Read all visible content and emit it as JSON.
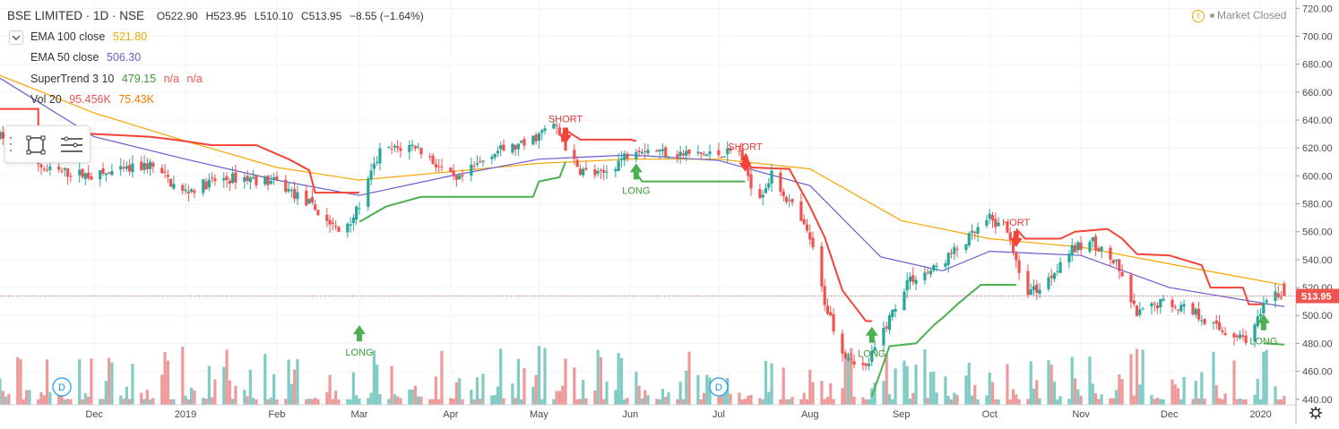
{
  "header": {
    "symbol": "BSE LIMITED · 1D · NSE",
    "open": "O522.90",
    "high": "H523.95",
    "low": "L510.10",
    "close": "C513.95",
    "change": "−8.55 (−1.64%)"
  },
  "legend": [
    {
      "name": "EMA 100 close",
      "values": [
        "521.80"
      ],
      "color": "#f7a600"
    },
    {
      "name": "EMA 50 close",
      "values": [
        "506.30"
      ],
      "color": "#6d5bd0"
    },
    {
      "name": "SuperTrend 3 10",
      "values": [
        "479.15",
        "n/a",
        "n/a"
      ],
      "color": "#3d9b3a"
    },
    {
      "name": "Vol 20",
      "values": [
        "95.456K",
        "75.43K"
      ],
      "color": "#ef5350"
    }
  ],
  "market_status": "Market Closed",
  "last_price_label": "513.95",
  "colors": {
    "up": "#26a69a",
    "down": "#ef5350",
    "ema100": "#f7a600",
    "ema50": "#6d5bd0",
    "st_up": "#4caf50",
    "st_down": "#f44336",
    "vol_up": "#80cbc4",
    "vol_down": "#ef9a9a"
  },
  "annotations": [
    {
      "text": "LONG",
      "type": "long",
      "date": "2019-03-01",
      "price": 484
    },
    {
      "text": "SHORT",
      "type": "short",
      "date": "2019-05-10",
      "price": 632
    },
    {
      "text": "LONG",
      "type": "long",
      "date": "2019-06-03",
      "price": 600
    },
    {
      "text": "SHORT",
      "type": "short",
      "date": "2019-07-10",
      "price": 612
    },
    {
      "text": "LONG",
      "type": "long",
      "date": "2019-08-22",
      "price": 483
    },
    {
      "text": "HORT",
      "type": "short",
      "date": "2019-10-10",
      "price": 558
    },
    {
      "text": "LONG",
      "type": "long",
      "date": "2020-01-02",
      "price": 492
    }
  ],
  "event_markers": [
    {
      "label": "D",
      "date": "2018-11-20"
    },
    {
      "label": "D",
      "date": "2019-07-01"
    }
  ],
  "chart_data": {
    "type": "candlestick",
    "title": "BSE LIMITED · 1D · NSE",
    "x_ticks": [
      {
        "label": "Dec",
        "date": "2018-12-01"
      },
      {
        "label": "2019",
        "date": "2019-01-01"
      },
      {
        "label": "Feb",
        "date": "2019-02-01"
      },
      {
        "label": "Mar",
        "date": "2019-03-01"
      },
      {
        "label": "Apr",
        "date": "2019-04-01"
      },
      {
        "label": "May",
        "date": "2019-05-01"
      },
      {
        "label": "Jun",
        "date": "2019-06-01"
      },
      {
        "label": "Jul",
        "date": "2019-07-01"
      },
      {
        "label": "Aug",
        "date": "2019-08-01"
      },
      {
        "label": "Sep",
        "date": "2019-09-01"
      },
      {
        "label": "Oct",
        "date": "2019-10-01"
      },
      {
        "label": "Nov",
        "date": "2019-11-01"
      },
      {
        "label": "Dec",
        "date": "2019-12-01"
      },
      {
        "label": "2020",
        "date": "2020-01-01"
      }
    ],
    "y_ticks": [
      720,
      700,
      680,
      660,
      640,
      620,
      600,
      580,
      560,
      540,
      520,
      500,
      480,
      460,
      440
    ],
    "ylim": [
      436,
      726
    ],
    "xlim": [
      "2018-10-30",
      "2020-01-13"
    ],
    "grid": true,
    "last_close": 513.95,
    "price_keypoints": [
      [
        "2018-11-01",
        628
      ],
      [
        "2018-11-15",
        604
      ],
      [
        "2018-12-01",
        600
      ],
      [
        "2018-12-10",
        603
      ],
      [
        "2018-12-20",
        608
      ],
      [
        "2018-12-31",
        588
      ],
      [
        "2019-01-10",
        596
      ],
      [
        "2019-01-20",
        599
      ],
      [
        "2019-02-01",
        595
      ],
      [
        "2019-02-12",
        580
      ],
      [
        "2019-02-22",
        560
      ],
      [
        "2019-02-28",
        574
      ],
      [
        "2019-03-08",
        617
      ],
      [
        "2019-03-20",
        622
      ],
      [
        "2019-04-03",
        595
      ],
      [
        "2019-04-15",
        617
      ],
      [
        "2019-04-26",
        622
      ],
      [
        "2019-05-06",
        637
      ],
      [
        "2019-05-14",
        605
      ],
      [
        "2019-05-22",
        600
      ],
      [
        "2019-06-03",
        621
      ],
      [
        "2019-06-15",
        616
      ],
      [
        "2019-06-28",
        615
      ],
      [
        "2019-07-08",
        618
      ],
      [
        "2019-07-14",
        583
      ],
      [
        "2019-07-19",
        600
      ],
      [
        "2019-07-26",
        578
      ],
      [
        "2019-08-01",
        555
      ],
      [
        "2019-08-06",
        510
      ],
      [
        "2019-08-12",
        475
      ],
      [
        "2019-08-20",
        462
      ],
      [
        "2019-08-25",
        485
      ],
      [
        "2019-09-03",
        525
      ],
      [
        "2019-09-12",
        533
      ],
      [
        "2019-09-24",
        555
      ],
      [
        "2019-10-01",
        569
      ],
      [
        "2019-10-08",
        557
      ],
      [
        "2019-10-12",
        517
      ],
      [
        "2019-10-19",
        520
      ],
      [
        "2019-10-27",
        545
      ],
      [
        "2019-11-05",
        553
      ],
      [
        "2019-11-13",
        536
      ],
      [
        "2019-11-20",
        500
      ],
      [
        "2019-11-28",
        510
      ],
      [
        "2019-12-08",
        505
      ],
      [
        "2019-12-18",
        490
      ],
      [
        "2019-12-28",
        483
      ],
      [
        "2020-01-02",
        505
      ],
      [
        "2020-01-06",
        516
      ],
      [
        "2020-01-09",
        514
      ]
    ],
    "ema100_keypoints": [
      [
        "2018-10-30",
        672
      ],
      [
        "2018-12-01",
        645
      ],
      [
        "2019-01-01",
        625
      ],
      [
        "2019-02-01",
        606
      ],
      [
        "2019-03-01",
        597
      ],
      [
        "2019-04-01",
        603
      ],
      [
        "2019-05-01",
        609
      ],
      [
        "2019-06-01",
        612
      ],
      [
        "2019-07-01",
        612
      ],
      [
        "2019-08-01",
        605
      ],
      [
        "2019-09-01",
        568
      ],
      [
        "2019-10-01",
        555
      ],
      [
        "2019-11-01",
        549
      ],
      [
        "2019-12-01",
        537
      ],
      [
        "2020-01-09",
        521.8
      ]
    ],
    "ema50_keypoints": [
      [
        "2018-10-30",
        670
      ],
      [
        "2018-12-01",
        628
      ],
      [
        "2019-01-01",
        612
      ],
      [
        "2019-02-01",
        597
      ],
      [
        "2019-03-01",
        586
      ],
      [
        "2019-04-01",
        600
      ],
      [
        "2019-05-01",
        612
      ],
      [
        "2019-06-01",
        615
      ],
      [
        "2019-07-01",
        611
      ],
      [
        "2019-08-01",
        593
      ],
      [
        "2019-08-25",
        542
      ],
      [
        "2019-09-15",
        532
      ],
      [
        "2019-10-01",
        546
      ],
      [
        "2019-11-01",
        543
      ],
      [
        "2019-12-01",
        520
      ],
      [
        "2020-01-09",
        506.3
      ]
    ],
    "supertrend_segments": [
      {
        "trend": "down",
        "points": [
          [
            "2018-10-30",
            648
          ],
          [
            "2018-11-12",
            648
          ],
          [
            "2018-11-12",
            632
          ],
          [
            "2018-12-20",
            628
          ],
          [
            "2018-12-28",
            626
          ],
          [
            "2019-01-10",
            622
          ],
          [
            "2019-01-25",
            622
          ],
          [
            "2019-02-05",
            612
          ],
          [
            "2019-02-12",
            604
          ],
          [
            "2019-02-14",
            588
          ],
          [
            "2019-03-01",
            588
          ]
        ]
      },
      {
        "trend": "up",
        "points": [
          [
            "2019-03-01",
            567
          ],
          [
            "2019-03-10",
            578
          ],
          [
            "2019-03-22",
            585
          ],
          [
            "2019-04-29",
            585
          ],
          [
            "2019-05-01",
            596
          ],
          [
            "2019-05-08",
            599
          ],
          [
            "2019-05-10",
            610
          ]
        ]
      },
      {
        "trend": "down",
        "points": [
          [
            "2019-05-10",
            633
          ],
          [
            "2019-05-15",
            626
          ],
          [
            "2019-06-01",
            626
          ],
          [
            "2019-06-03",
            625
          ]
        ]
      },
      {
        "trend": "up",
        "points": [
          [
            "2019-06-03",
            602
          ],
          [
            "2019-06-05",
            596
          ],
          [
            "2019-07-10",
            596
          ]
        ]
      },
      {
        "trend": "down",
        "points": [
          [
            "2019-07-10",
            616
          ],
          [
            "2019-07-12",
            606
          ],
          [
            "2019-07-25",
            605
          ],
          [
            "2019-08-01",
            578
          ],
          [
            "2019-08-06",
            556
          ],
          [
            "2019-08-12",
            518
          ],
          [
            "2019-08-16",
            507
          ],
          [
            "2019-08-20",
            496
          ],
          [
            "2019-08-22",
            496
          ]
        ]
      },
      {
        "trend": "up",
        "points": [
          [
            "2019-08-22",
            442
          ],
          [
            "2019-08-28",
            478
          ],
          [
            "2019-09-06",
            480
          ],
          [
            "2019-09-12",
            493
          ],
          [
            "2019-09-16",
            500
          ],
          [
            "2019-09-20",
            508
          ],
          [
            "2019-09-28",
            522
          ],
          [
            "2019-10-10",
            522
          ]
        ]
      },
      {
        "trend": "down",
        "points": [
          [
            "2019-10-10",
            562
          ],
          [
            "2019-10-13",
            555
          ],
          [
            "2019-10-25",
            555
          ],
          [
            "2019-10-30",
            560
          ],
          [
            "2019-11-10",
            562
          ],
          [
            "2019-11-15",
            555
          ],
          [
            "2019-11-20",
            544
          ],
          [
            "2019-12-01",
            543
          ],
          [
            "2019-12-12",
            536
          ],
          [
            "2019-12-15",
            520
          ],
          [
            "2019-12-26",
            520
          ],
          [
            "2019-12-28",
            508
          ],
          [
            "2020-01-02",
            508
          ]
        ]
      },
      {
        "trend": "up",
        "points": [
          [
            "2020-01-02",
            480
          ],
          [
            "2020-01-09",
            479.15
          ]
        ]
      }
    ],
    "volume_series": {
      "name": "Vol 20",
      "last": "95.456K",
      "ma": "75.43K"
    }
  }
}
